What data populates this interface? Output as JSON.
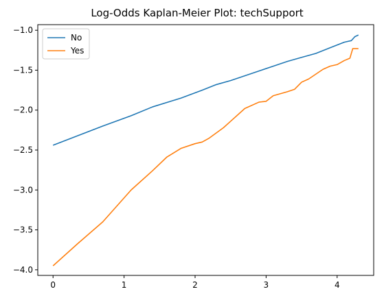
{
  "chart_data": {
    "type": "line",
    "title": "Log-Odds Kaplan-Meier Plot: techSupport",
    "xlabel": "",
    "ylabel": "",
    "xlim": [
      -0.215,
      4.515
    ],
    "ylim": [
      -4.07,
      -0.93
    ],
    "x_ticks": [
      0,
      1,
      2,
      3,
      4
    ],
    "y_ticks": [
      -4.0,
      -3.5,
      -3.0,
      -2.5,
      -2.0,
      -1.5,
      -1.0
    ],
    "x_tick_labels": [
      "0",
      "1",
      "2",
      "3",
      "4"
    ],
    "y_tick_labels": [
      "−4.0",
      "−3.5",
      "−3.0",
      "−2.5",
      "−2.0",
      "−1.5",
      "−1.0"
    ],
    "grid": false,
    "legend_position": "top-left",
    "series": [
      {
        "name": "No",
        "color": "#1f77b4",
        "x": [
          0,
          0.35,
          0.7,
          1.1,
          1.4,
          1.8,
          2.1,
          2.3,
          2.5,
          2.7,
          2.9,
          3.1,
          3.3,
          3.5,
          3.7,
          3.9,
          4.1,
          4.2,
          4.25,
          4.3
        ],
        "y": [
          -2.44,
          -2.32,
          -2.2,
          -2.07,
          -1.96,
          -1.85,
          -1.75,
          -1.68,
          -1.63,
          -1.57,
          -1.51,
          -1.45,
          -1.39,
          -1.34,
          -1.29,
          -1.22,
          -1.15,
          -1.13,
          -1.08,
          -1.06
        ]
      },
      {
        "name": "Yes",
        "color": "#ff7f0e",
        "x": [
          0,
          0.35,
          0.7,
          1.1,
          1.4,
          1.6,
          1.8,
          2.0,
          2.1,
          2.2,
          2.4,
          2.5,
          2.7,
          2.9,
          3.0,
          3.1,
          3.3,
          3.4,
          3.5,
          3.6,
          3.7,
          3.8,
          3.9,
          4.0,
          4.1,
          4.18,
          4.22,
          4.3
        ],
        "y": [
          -3.95,
          -3.67,
          -3.4,
          -3.0,
          -2.76,
          -2.59,
          -2.48,
          -2.42,
          -2.4,
          -2.35,
          -2.22,
          -2.14,
          -1.98,
          -1.9,
          -1.89,
          -1.82,
          -1.77,
          -1.74,
          -1.65,
          -1.61,
          -1.55,
          -1.49,
          -1.45,
          -1.43,
          -1.38,
          -1.35,
          -1.23,
          -1.23
        ]
      }
    ]
  }
}
